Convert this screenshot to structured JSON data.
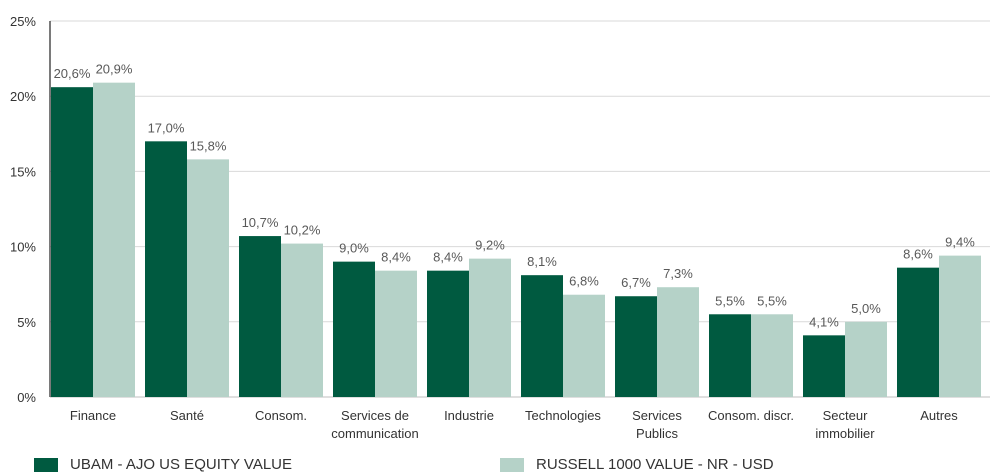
{
  "chart_data": {
    "type": "bar",
    "title": "",
    "xlabel": "",
    "ylabel": "",
    "categories": [
      [
        "Finance"
      ],
      [
        "Santé"
      ],
      [
        "Consom."
      ],
      [
        "Services de",
        "communication"
      ],
      [
        "Industrie"
      ],
      [
        "Technologies"
      ],
      [
        "Services",
        "Publics"
      ],
      [
        "Consom. discr."
      ],
      [
        "Secteur",
        "immobilier"
      ],
      [
        "Autres"
      ]
    ],
    "series": [
      {
        "name": "UBAM - AJO US EQUITY VALUE",
        "color": "#005a40",
        "values": [
          20.6,
          17.0,
          10.7,
          9.0,
          8.4,
          8.1,
          6.7,
          5.5,
          4.1,
          8.6
        ],
        "labels": [
          "20,6%",
          "17,0%",
          "10,7%",
          "9,0%",
          "8,4%",
          "8,1%",
          "6,7%",
          "5,5%",
          "4,1%",
          "8,6%"
        ]
      },
      {
        "name": "RUSSELL 1000 VALUE - NR - USD",
        "color": "#b5d2c8",
        "values": [
          20.9,
          15.8,
          10.2,
          8.4,
          9.2,
          6.8,
          7.3,
          5.5,
          5.0,
          9.4
        ],
        "labels": [
          "20,9%",
          "15,8%",
          "10,2%",
          "8,4%",
          "9,2%",
          "6,8%",
          "7,3%",
          "5,5%",
          "5,0%",
          "9,4%"
        ]
      }
    ],
    "ylim": [
      0,
      25
    ],
    "yticks": [
      0,
      5,
      10,
      15,
      20,
      25
    ],
    "ytick_labels": [
      "0%",
      "5%",
      "10%",
      "15%",
      "20%",
      "25%"
    ],
    "grid": true,
    "legend_position": "bottom"
  }
}
